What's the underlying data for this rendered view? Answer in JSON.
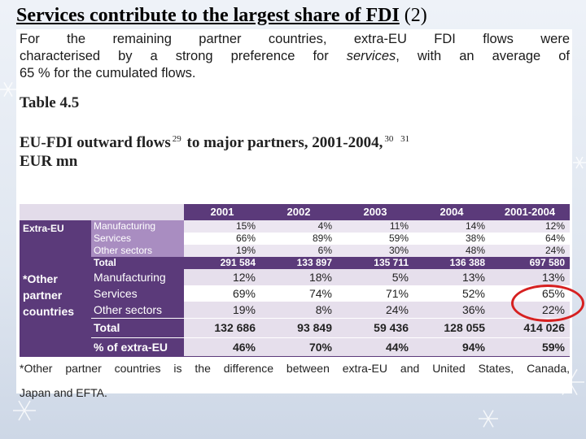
{
  "title": {
    "main": "Services contribute to the largest share of FDI",
    "suffix": " (2)"
  },
  "intro": {
    "line1": "For the remaining partner countries, extra-EU FDI flows were",
    "line2_pre": "characterised by a strong preference for ",
    "line2_em": "services",
    "line2_post": ", with an average of",
    "line3": "65 % for the cumulated flows."
  },
  "table_number": "Table 4.5",
  "table_caption": {
    "part1": "EU-FDI outward flows",
    "sup1": "29",
    "part2": " to major partners, 2001-2004,",
    "sup2": "30",
    "sup3": "31",
    "part3": "EUR mn"
  },
  "table": {
    "columns": [
      "2001",
      "2002",
      "2003",
      "2004",
      "2001-2004"
    ],
    "extra_eu": {
      "label": "Extra-EU",
      "rows": [
        {
          "label": "Manufacturing",
          "values": [
            "15%",
            "4%",
            "11%",
            "14%",
            "12%"
          ]
        },
        {
          "label": "Services",
          "values": [
            "66%",
            "89%",
            "59%",
            "38%",
            "64%"
          ]
        },
        {
          "label": "Other sectors",
          "values": [
            "19%",
            "6%",
            "30%",
            "48%",
            "24%"
          ]
        },
        {
          "label": "Total",
          "values": [
            "291 584",
            "133 897",
            "135 711",
            "136 388",
            "697 580"
          ]
        }
      ]
    },
    "other": {
      "label_lines": [
        "*Other",
        "partner",
        "countries"
      ],
      "rows": [
        {
          "label": "Manufacturing",
          "values": [
            "12%",
            "18%",
            "5%",
            "13%",
            "13%"
          ]
        },
        {
          "label": "Services",
          "values": [
            "69%",
            "74%",
            "71%",
            "52%",
            "65%"
          ]
        },
        {
          "label": "Other sectors",
          "values": [
            "19%",
            "8%",
            "24%",
            "36%",
            "22%"
          ]
        },
        {
          "label": "Total",
          "values": [
            "132 686",
            "93 849",
            "59 436",
            "128 055",
            "414 026"
          ]
        },
        {
          "label": "% of extra-EU",
          "values": [
            "46%",
            "70%",
            "44%",
            "94%",
            "59%"
          ]
        }
      ]
    }
  },
  "footnote": {
    "line1": "*Other partner countries is the difference between extra-EU and United States, Canada,",
    "line2": "Japan and EFTA."
  },
  "colors": {
    "table_purple": "#5b3a7a",
    "highlight_circle": "#d62020"
  }
}
